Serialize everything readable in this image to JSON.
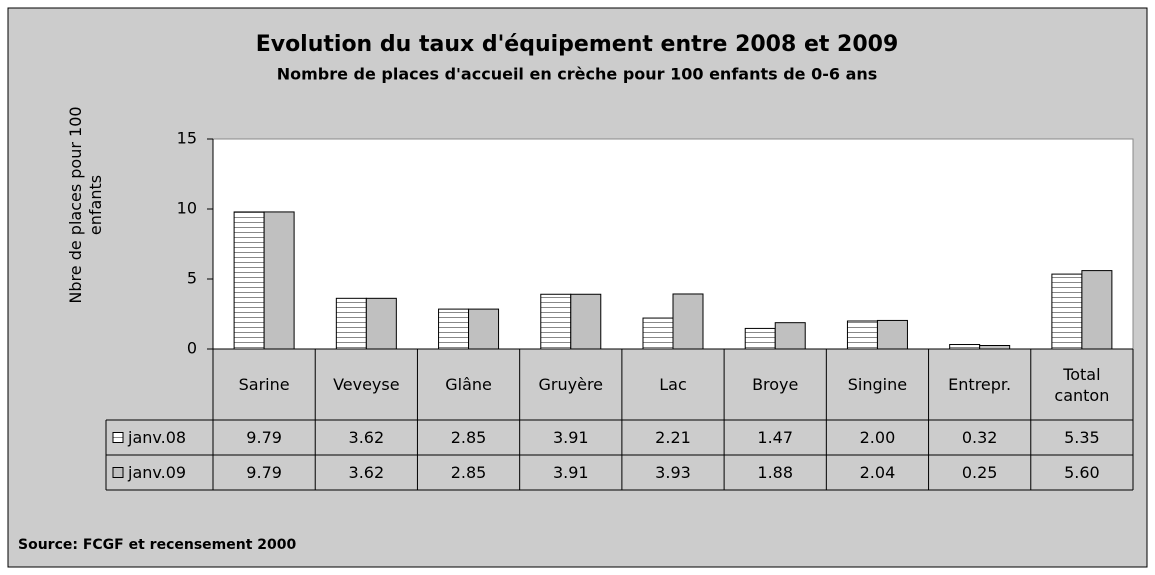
{
  "chart_data": {
    "type": "bar",
    "title": "Evolution du taux d'équipement entre 2008 et 2009",
    "subtitle": "Nombre de places d'accueil en crèche pour 100 enfants de 0-6 ans",
    "ylabel": "Nbre de places pour 100 enfants",
    "categories": [
      "Sarine",
      "Veveyse",
      "Glâne",
      "Gruyère",
      "Lac",
      "Broye",
      "Singine",
      "Entrepr.",
      "Total canton"
    ],
    "series": [
      {
        "name": "janv.08",
        "color": "#ffffff",
        "pattern": "horizontal-stripes",
        "values": [
          9.79,
          3.62,
          2.85,
          3.91,
          2.21,
          1.47,
          2.0,
          0.32,
          5.35
        ],
        "value_labels": [
          "9.79",
          "3.62",
          "2.85",
          "3.91",
          "2.21",
          "1.47",
          "2.00",
          "0.32",
          "5.35"
        ]
      },
      {
        "name": "janv.09",
        "color": "#c0c0c0",
        "values": [
          9.79,
          3.62,
          2.85,
          3.91,
          3.93,
          1.88,
          2.04,
          0.25,
          5.6
        ],
        "value_labels": [
          "9.79",
          "3.62",
          "2.85",
          "3.91",
          "3.93",
          "1.88",
          "2.04",
          "0.25",
          "5.60"
        ]
      }
    ],
    "ylim": [
      0,
      15
    ],
    "yticks": [
      0,
      5,
      10,
      15
    ],
    "grid": false,
    "source": "Source: FCGF et recensement 2000"
  }
}
